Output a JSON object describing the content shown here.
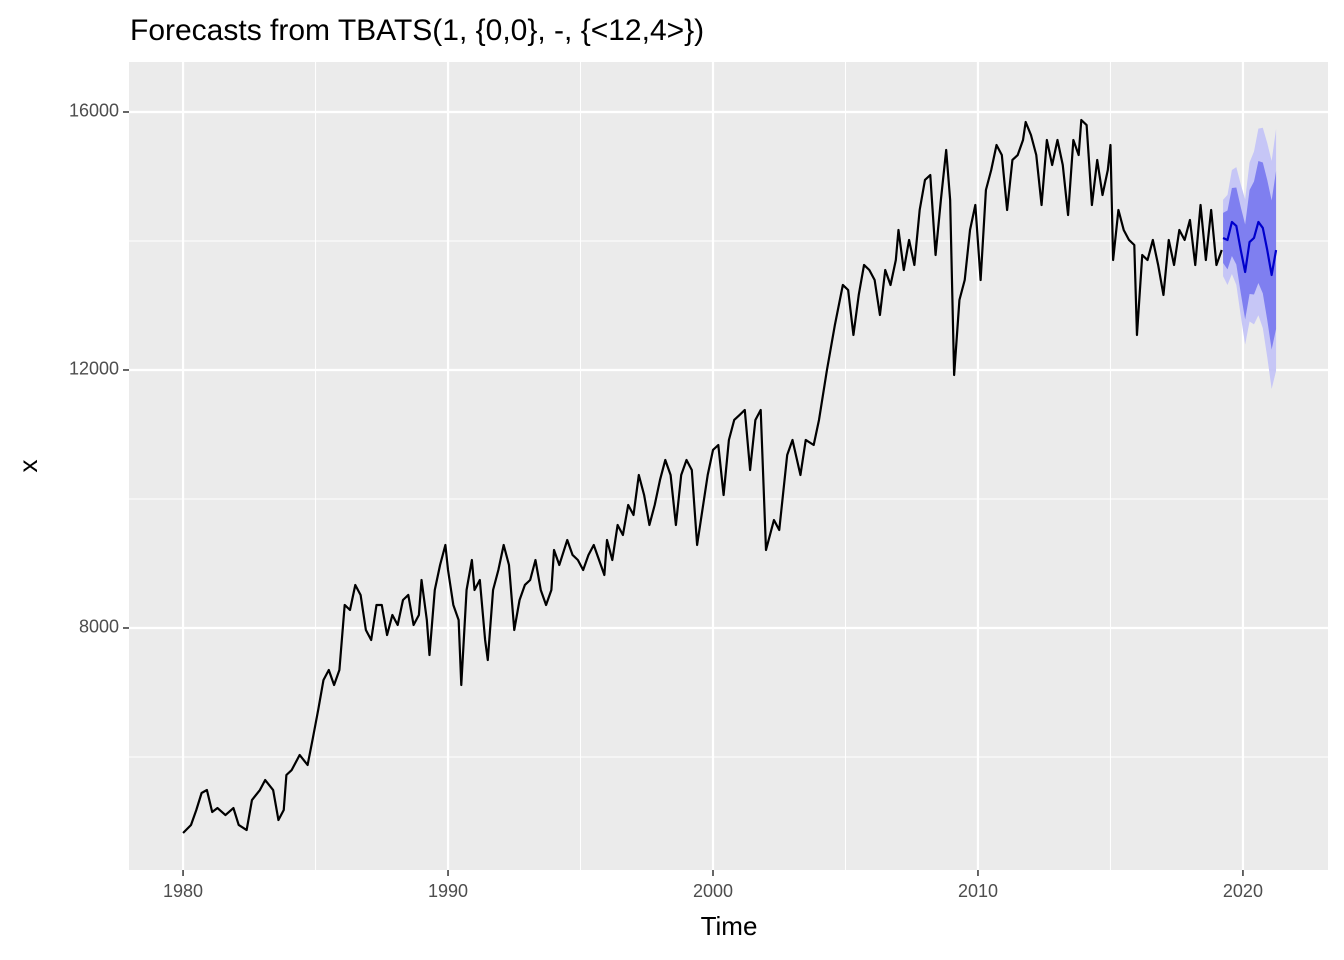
{
  "chart_data": {
    "type": "forecast",
    "title": "Forecasts from TBATS(1, {0,0}, -, {<12,4>})",
    "x_label": "Time",
    "y_label": "x",
    "xlim": [
      1977.96,
      2023.21
    ],
    "ylim": [
      4248,
      16775
    ],
    "xticks": [
      1980,
      1990,
      2000,
      2010,
      2020
    ],
    "yticks": [
      8000,
      12000,
      16000
    ],
    "xminor": [
      1985,
      1995,
      2005,
      2015
    ],
    "yminor": [
      6000,
      10000,
      14000
    ],
    "grid": true,
    "history": {
      "color": "#000000",
      "x": [
        1980.0,
        1980.3,
        1980.5,
        1980.7,
        1980.9,
        1981.1,
        1981.3,
        1981.6,
        1981.9,
        1982.1,
        1982.4,
        1982.6,
        1982.9,
        1983.1,
        1983.4,
        1983.6,
        1983.8,
        1983.9,
        1984.1,
        1984.4,
        1984.7,
        1984.9,
        1985.1,
        1985.3,
        1985.5,
        1985.7,
        1985.9,
        1986.1,
        1986.3,
        1986.5,
        1986.7,
        1986.9,
        1987.1,
        1987.3,
        1987.5,
        1987.7,
        1987.9,
        1988.1,
        1988.3,
        1988.5,
        1988.7,
        1988.9,
        1989.0,
        1989.2,
        1989.3,
        1989.5,
        1989.7,
        1989.9,
        1990.0,
        1990.2,
        1990.4,
        1990.5,
        1990.7,
        1990.9,
        1991.0,
        1991.2,
        1991.4,
        1991.5,
        1991.7,
        1991.9,
        1992.1,
        1992.3,
        1992.5,
        1992.7,
        1992.9,
        1993.1,
        1993.3,
        1993.5,
        1993.7,
        1993.9,
        1994.0,
        1994.2,
        1994.5,
        1994.7,
        1994.9,
        1995.1,
        1995.3,
        1995.5,
        1995.7,
        1995.9,
        1996.0,
        1996.2,
        1996.4,
        1996.6,
        1996.8,
        1997.0,
        1997.2,
        1997.4,
        1997.6,
        1997.8,
        1998.0,
        1998.2,
        1998.4,
        1998.6,
        1998.8,
        1999.0,
        1999.2,
        1999.4,
        1999.6,
        1999.8,
        2000.0,
        2000.2,
        2000.4,
        2000.6,
        2000.8,
        2001.0,
        2001.2,
        2001.4,
        2001.6,
        2001.8,
        2002.0,
        2002.3,
        2002.5,
        2002.8,
        2003.0,
        2003.3,
        2003.5,
        2003.8,
        2004.0,
        2004.3,
        2004.6,
        2004.9,
        2005.1,
        2005.3,
        2005.5,
        2005.7,
        2005.9,
        2006.1,
        2006.3,
        2006.5,
        2006.7,
        2006.9,
        2007.0,
        2007.2,
        2007.4,
        2007.6,
        2007.8,
        2008.0,
        2008.2,
        2008.4,
        2008.6,
        2008.8,
        2008.95,
        2009.1,
        2009.3,
        2009.5,
        2009.7,
        2009.9,
        2010.1,
        2010.3,
        2010.5,
        2010.7,
        2010.9,
        2011.1,
        2011.3,
        2011.5,
        2011.7,
        2011.8,
        2012.0,
        2012.2,
        2012.4,
        2012.6,
        2012.8,
        2013.0,
        2013.2,
        2013.4,
        2013.6,
        2013.8,
        2013.9,
        2014.1,
        2014.3,
        2014.5,
        2014.7,
        2014.9,
        2015.0,
        2015.1,
        2015.3,
        2015.5,
        2015.7,
        2015.9,
        2016.0,
        2016.2,
        2016.4,
        2016.6,
        2016.8,
        2017.0,
        2017.2,
        2017.4,
        2017.6,
        2017.8,
        2018.0,
        2018.2,
        2018.4,
        2018.6,
        2018.8,
        2019.0,
        2019.2
      ],
      "values": [
        4822,
        4946,
        5178,
        5442,
        5488,
        5147,
        5209,
        5100,
        5209,
        4946,
        4868,
        5333,
        5488,
        5643,
        5488,
        5023,
        5178,
        5721,
        5798,
        6031,
        5876,
        6295,
        6729,
        7194,
        7349,
        7116,
        7349,
        8357,
        8279,
        8667,
        8512,
        7969,
        7814,
        8357,
        8357,
        7891,
        8202,
        8047,
        8434,
        8512,
        8047,
        8202,
        8744,
        8124,
        7581,
        8589,
        8977,
        9287,
        8899,
        8357,
        8124,
        7116,
        8589,
        9054,
        8589,
        8744,
        7814,
        7504,
        8589,
        8899,
        9287,
        8977,
        7969,
        8434,
        8667,
        8744,
        9054,
        8589,
        8357,
        8589,
        9209,
        8977,
        9364,
        9132,
        9054,
        8899,
        9132,
        9287,
        9054,
        8822,
        9364,
        9054,
        9597,
        9442,
        9907,
        9752,
        10372,
        10062,
        9597,
        9907,
        10295,
        10605,
        10372,
        9597,
        10372,
        10605,
        10450,
        9287,
        9830,
        10372,
        10760,
        10837,
        10062,
        10915,
        11225,
        11302,
        11380,
        10450,
        11225,
        11380,
        9209,
        9674,
        9519,
        10682,
        10915,
        10372,
        10915,
        10837,
        11225,
        12000,
        12698,
        13318,
        13240,
        12543,
        13163,
        13628,
        13550,
        13395,
        12853,
        13550,
        13318,
        13705,
        14171,
        13550,
        14016,
        13628,
        14481,
        14946,
        15023,
        13783,
        14636,
        15411,
        14636,
        11922,
        13085,
        13395,
        14171,
        14558,
        13395,
        14791,
        15101,
        15488,
        15333,
        14481,
        15256,
        15333,
        15566,
        15845,
        15643,
        15333,
        14558,
        15566,
        15178,
        15566,
        15178,
        14403,
        15566,
        15333,
        15876,
        15798,
        14558,
        15256,
        14713,
        15101,
        15488,
        13705,
        14481,
        14171,
        14016,
        13938,
        12543,
        13783,
        13705,
        14016,
        13628,
        13163,
        14016,
        13628,
        14171,
        14016,
        14326,
        13628,
        14558,
        13705,
        14481,
        13628,
        13860
      ]
    },
    "forecast": {
      "color": "#0000CC",
      "band80_color": "#7F7FF0",
      "band95_color": "#C6C6F6",
      "x": [
        2019.25,
        2019.417,
        2019.583,
        2019.75,
        2019.917,
        2020.083,
        2020.25,
        2020.417,
        2020.583,
        2020.75,
        2020.917,
        2021.083,
        2021.25
      ],
      "mean": [
        14047,
        14016,
        14295,
        14233,
        13860,
        13519,
        13984,
        14047,
        14295,
        14202,
        13860,
        13473,
        13860
      ],
      "hi80": [
        14435,
        14473,
        14822,
        14830,
        14527,
        14255,
        14790,
        14923,
        15241,
        15217,
        14945,
        14628,
        15085
      ],
      "lo80": [
        13659,
        13559,
        13768,
        13636,
        13193,
        12783,
        13178,
        13171,
        13349,
        13187,
        12775,
        12318,
        12635
      ],
      "hi95": [
        14640,
        14715,
        15101,
        15146,
        14880,
        14645,
        15217,
        15387,
        15742,
        15755,
        15520,
        15240,
        15734
      ],
      "lo95": [
        13454,
        13317,
        13489,
        13320,
        12840,
        12393,
        12751,
        12707,
        12848,
        12649,
        12200,
        11706,
        11986
      ]
    }
  }
}
